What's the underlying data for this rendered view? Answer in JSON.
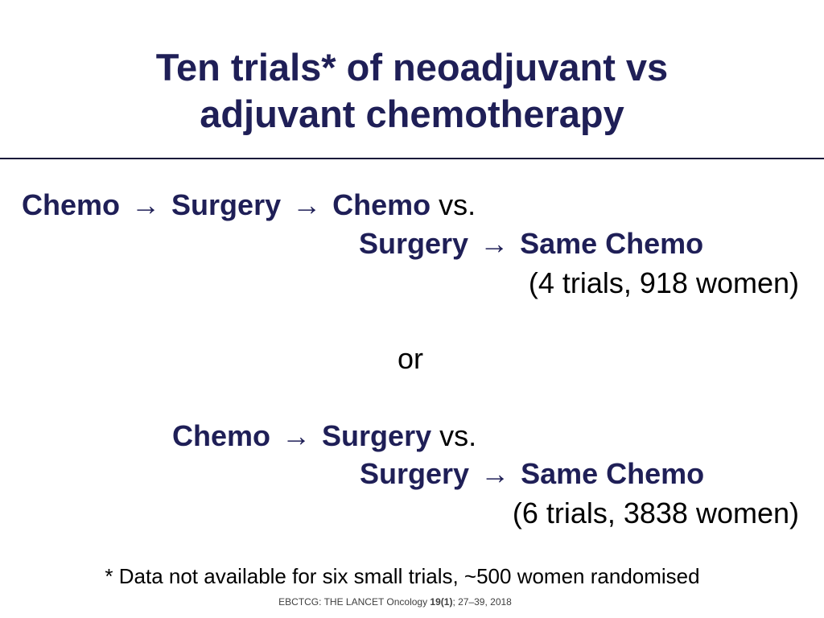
{
  "slide": {
    "title_line1": "Ten trials* of neoadjuvant vs",
    "title_line2": "adjuvant chemotherapy"
  },
  "comparison1": {
    "line1": {
      "term1": "Chemo",
      "arrow1": "→",
      "term2": "Surgery",
      "arrow2": "→",
      "term3": "Chemo",
      "vs": "vs."
    },
    "line2": {
      "term1": "Surgery",
      "arrow": "→",
      "term2": "Same Chemo"
    },
    "detail": "(4 trials, 918 women)"
  },
  "separator": "or",
  "comparison2": {
    "line1": {
      "term1": "Chemo",
      "arrow": "→",
      "term2": "Surgery",
      "vs": "vs."
    },
    "line2": {
      "term1": "Surgery",
      "arrow": "→",
      "term2": "Same Chemo"
    },
    "detail": "(6 trials, 3838 women)"
  },
  "footnote": "* Data not available for six small trials, ~500 women randomised",
  "citation": {
    "prefix": "EBCTCG: THE LANCET Oncology ",
    "volume": "19(1)",
    "suffix": ";  27–39, 2018"
  }
}
